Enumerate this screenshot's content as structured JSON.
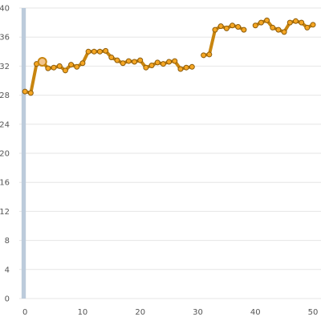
{
  "chart_data": {
    "type": "line",
    "title": "",
    "xlabel": "",
    "ylabel": "",
    "xlim": [
      -1,
      50
    ],
    "ylim": [
      0,
      40
    ],
    "x_ticks": [
      0,
      10,
      20,
      30,
      40,
      50
    ],
    "y_ticks": [
      0,
      4,
      8,
      12,
      16,
      20,
      24,
      28,
      32,
      36,
      40
    ],
    "grid": "horizontal",
    "legend": "none",
    "colors": {
      "line": "#c8850f",
      "marker_fill": "#f5a623",
      "marker_stroke": "#8a5a0a",
      "y_axis_band": "#bccbdb",
      "highlight": "#f2c48d"
    },
    "highlight_index": 3,
    "series": [
      {
        "x": [
          0,
          1,
          2,
          3,
          4,
          5,
          6,
          7,
          8,
          9,
          10,
          11,
          12,
          13,
          14,
          15,
          16,
          17,
          18,
          19,
          20,
          21,
          22,
          23,
          24,
          25,
          26,
          27,
          28,
          29,
          31,
          32,
          33,
          34,
          35,
          36,
          37,
          38,
          40,
          41,
          42,
          43,
          44,
          45,
          46,
          47,
          48,
          49,
          50
        ],
        "values": [
          28.5,
          28.3,
          32.3,
          32.6,
          31.7,
          31.8,
          32.0,
          31.4,
          32.2,
          31.9,
          32.4,
          34.0,
          34.0,
          34.0,
          34.1,
          33.2,
          32.8,
          32.4,
          32.7,
          32.6,
          32.8,
          31.8,
          32.1,
          32.5,
          32.3,
          32.6,
          32.7,
          31.6,
          31.8,
          31.9,
          33.5,
          33.6,
          37.0,
          37.5,
          37.2,
          37.6,
          37.4,
          37.0,
          37.6,
          38.0,
          38.3,
          37.3,
          37.0,
          36.7,
          38.0,
          38.2,
          38.0,
          37.3,
          37.7
        ]
      }
    ]
  }
}
